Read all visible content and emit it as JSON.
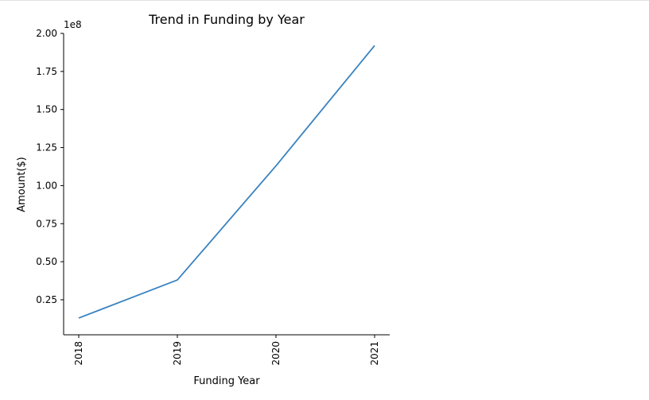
{
  "chart_data": {
    "type": "line",
    "title": "Trend in Funding by Year",
    "xlabel": "Funding Year",
    "ylabel": "Amount($)",
    "offset_label": "1e8",
    "x": [
      "2018",
      "2019",
      "2020",
      "2021"
    ],
    "y_ticks": [
      "0.25",
      "0.50",
      "0.75",
      "1.00",
      "1.25",
      "1.50",
      "1.75",
      "2.00"
    ],
    "ylim": [
      0.02,
      2.0
    ],
    "series": [
      {
        "values": [
          0.13,
          0.38,
          1.13,
          1.92
        ]
      }
    ],
    "line_color": "#3a82bf",
    "grid": false
  }
}
